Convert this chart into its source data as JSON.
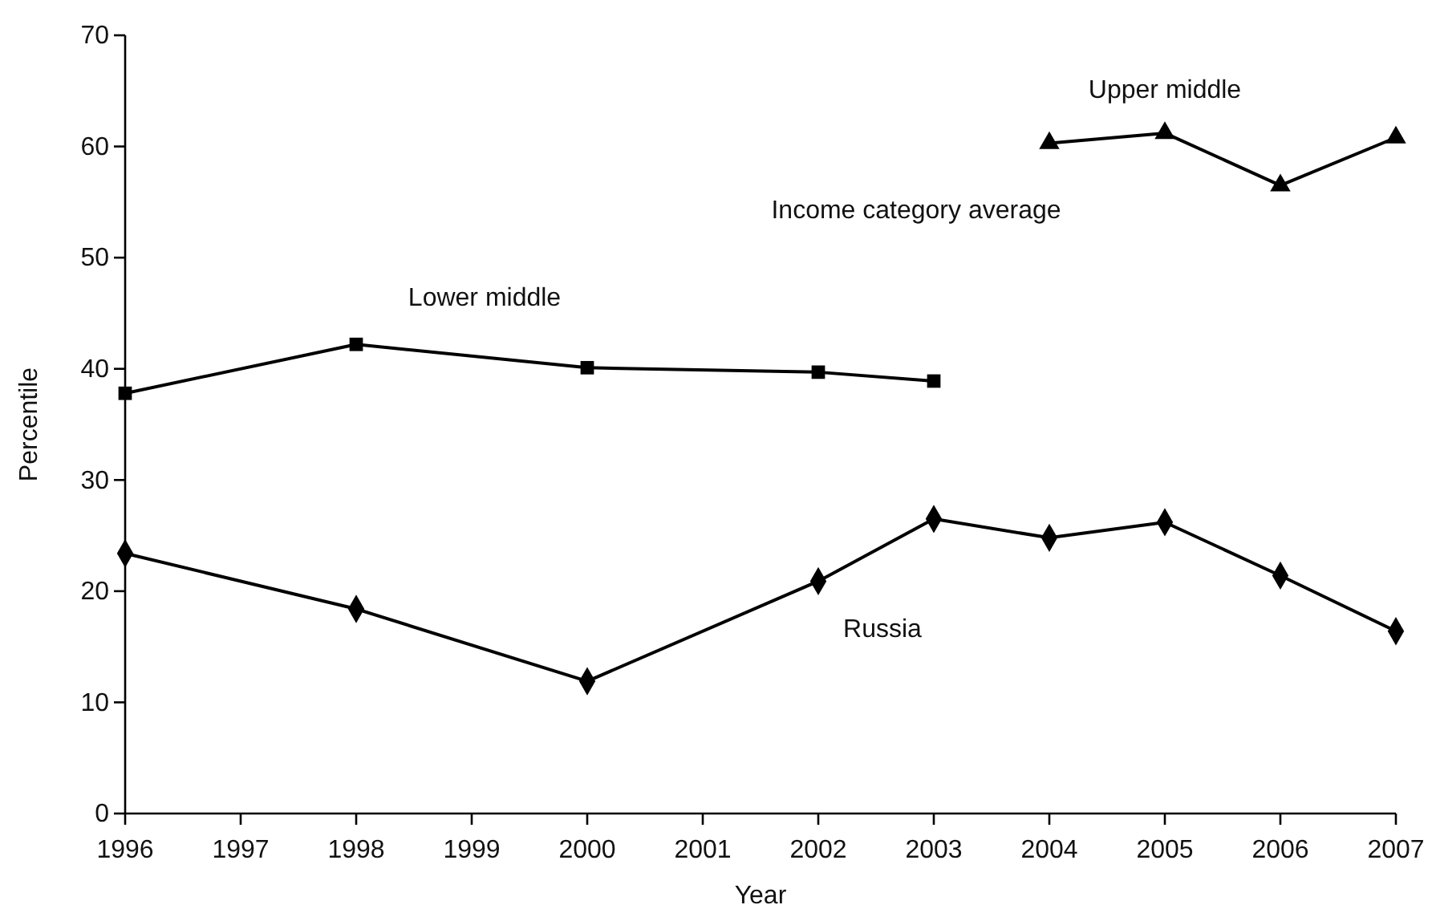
{
  "chart_data": {
    "type": "line",
    "xlabel": "Year",
    "ylabel": "Percentile",
    "annotations": [
      "Income category average"
    ],
    "xlim": [
      1996,
      2007
    ],
    "xticks": [
      1996,
      1997,
      1998,
      1999,
      2000,
      2001,
      2002,
      2003,
      2004,
      2005,
      2006,
      2007
    ],
    "ylim": [
      0,
      70
    ],
    "yticks": [
      0,
      10,
      20,
      30,
      40,
      50,
      60,
      70
    ],
    "grid": false,
    "legend": false,
    "line_style": "solid",
    "series": [
      {
        "name": "Lower middle",
        "color": "#000000",
        "marker": "square",
        "x": [
          1996,
          1998,
          2000,
          2002,
          2003
        ],
        "values": [
          37.8,
          42.2,
          40.1,
          39.7,
          38.9
        ]
      },
      {
        "name": "Upper middle",
        "color": "#000000",
        "marker": "triangle",
        "x": [
          2004,
          2005,
          2006,
          2007
        ],
        "values": [
          60.3,
          61.2,
          56.5,
          60.8
        ]
      },
      {
        "name": "Russia",
        "color": "#000000",
        "marker": "diamond",
        "x": [
          1996,
          1998,
          2000,
          2002,
          2003,
          2004,
          2005,
          2006,
          2007
        ],
        "values": [
          23.4,
          18.4,
          11.9,
          20.9,
          26.5,
          24.8,
          26.2,
          21.4,
          16.4
        ]
      }
    ]
  }
}
